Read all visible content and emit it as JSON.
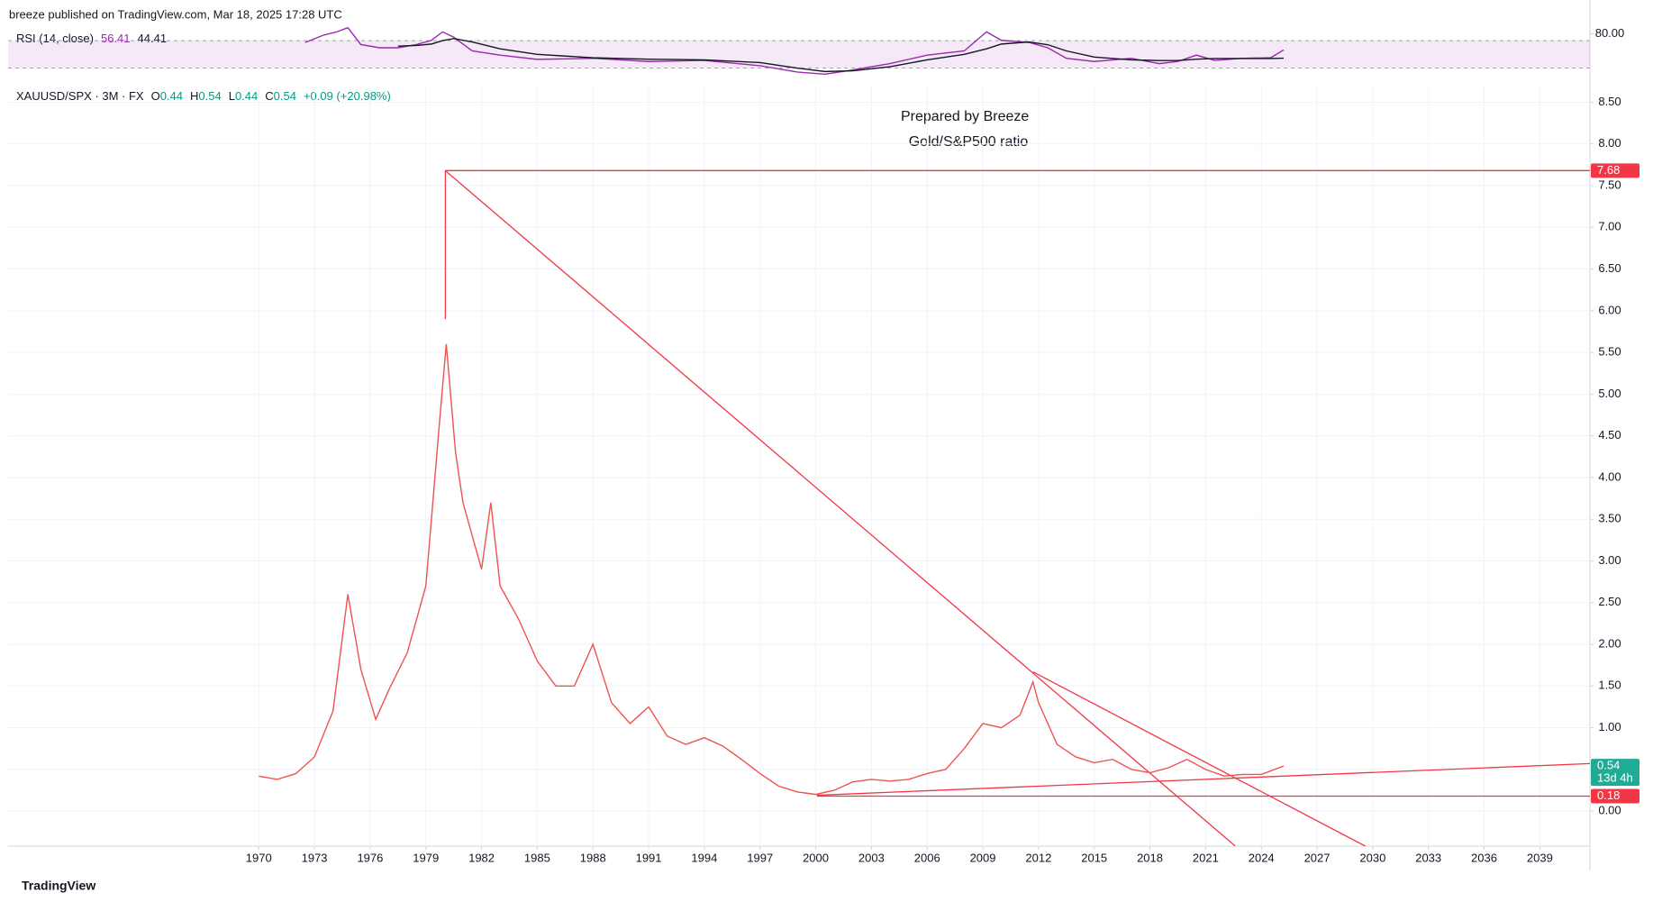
{
  "header": "breeze published on TradingView.com, Mar 18, 2025 17:28 UTC",
  "footer": "TradingView",
  "chart_data": [
    {
      "type": "line",
      "title": "RSI (14, close)",
      "legend_values": [
        56.41,
        44.41
      ],
      "x": [
        1972.5,
        1973.5,
        1974.2,
        1974.8,
        1975.5,
        1976.5,
        1977.5,
        1978.5,
        1979.3,
        1979.9,
        1980.5,
        1981.5,
        1983,
        1985,
        1988,
        1991,
        1994,
        1997,
        1999,
        2000.5,
        2002,
        2004,
        2006,
        2008,
        2009.2,
        2010,
        2011.5,
        2012.5,
        2013.5,
        2015,
        2017,
        2018.5,
        2019.5,
        2020.5,
        2021.5,
        2023,
        2024.5,
        2025.2
      ],
      "series": [
        {
          "color": "#9c27b0",
          "values": [
            67.3,
            78.1,
            82.7,
            88.8,
            64.2,
            59.6,
            59.6,
            64.2,
            70.4,
            82.7,
            75,
            55,
            48.9,
            42.7,
            44.2,
            39.6,
            41.2,
            33.5,
            24.2,
            21.2,
            27.3,
            36.5,
            48.9,
            55,
            82.7,
            70.4,
            67.3,
            59.6,
            44.2,
            39.6,
            44.2,
            36.5,
            39.6,
            48.9,
            41.2,
            44.2,
            45,
            56.41
          ]
        },
        {
          "color": "#131722",
          "values": [
            null,
            null,
            null,
            null,
            null,
            null,
            62,
            63,
            65,
            70,
            73,
            68,
            58,
            50,
            45,
            43,
            42,
            38,
            30,
            25,
            26,
            32,
            42,
            50,
            58,
            65,
            68,
            64,
            55,
            46,
            42,
            41,
            41,
            43,
            44,
            44,
            44,
            44.41
          ]
        }
      ],
      "xlim": [
        1956.5,
        2041.7
      ],
      "ylim": [
        15,
        95
      ],
      "yticks": [
        {
          "value": 80,
          "label": "80.00"
        }
      ],
      "band": [
        30,
        70
      ],
      "band_color": "#9c27b0"
    },
    {
      "type": "line",
      "symbol": "XAUUSD/SPX · 3M · FX",
      "ohlc_labels": [
        "O",
        "H",
        "L",
        "C"
      ],
      "ohlc": [
        0.44,
        0.54,
        0.44,
        0.54
      ],
      "change": "+0.09 (+20.98%)",
      "annotations": [
        "Prepared by Breeze",
        "Gold/S&P500 ratio"
      ],
      "x": [
        1970,
        1971,
        1972,
        1973,
        1974,
        1974.8,
        1975.5,
        1976.3,
        1977,
        1978,
        1979,
        1979.75,
        1980.1,
        1980.6,
        1981,
        1982,
        1982.5,
        1983,
        1984,
        1985,
        1986,
        1987,
        1988,
        1989,
        1990,
        1991,
        1992,
        1993,
        1994,
        1995,
        1996,
        1997,
        1998,
        1999,
        2000,
        2001,
        2002,
        2003,
        2004,
        2005,
        2006,
        2007,
        2008,
        2009,
        2010,
        2011,
        2011.7,
        2012,
        2013,
        2014,
        2015,
        2016,
        2017,
        2018,
        2019,
        2020,
        2021,
        2022,
        2023,
        2024,
        2025.2
      ],
      "series": [
        {
          "color": "#ef5350",
          "values": [
            0.42,
            0.38,
            0.45,
            0.65,
            1.2,
            2.6,
            1.7,
            1.1,
            1.45,
            1.9,
            2.7,
            4.7,
            5.6,
            4.3,
            3.7,
            2.9,
            3.7,
            2.7,
            2.3,
            1.8,
            1.5,
            1.5,
            2.0,
            1.3,
            1.05,
            1.25,
            0.9,
            0.8,
            0.88,
            0.78,
            0.62,
            0.45,
            0.3,
            0.23,
            0.2,
            0.25,
            0.35,
            0.38,
            0.36,
            0.38,
            0.45,
            0.5,
            0.75,
            1.05,
            1.0,
            1.15,
            1.55,
            1.3,
            0.8,
            0.65,
            0.58,
            0.62,
            0.5,
            0.46,
            0.52,
            0.62,
            0.5,
            0.42,
            0.44,
            0.44,
            0.54
          ]
        }
      ],
      "xlim": [
        1956.5,
        2041.7
      ],
      "ylim": [
        -0.42,
        8.71
      ],
      "xticks": [
        1970,
        1973,
        1976,
        1979,
        1982,
        1985,
        1988,
        1991,
        1994,
        1997,
        2000,
        2003,
        2006,
        2009,
        2012,
        2015,
        2018,
        2021,
        2024,
        2027,
        2030,
        2033,
        2036,
        2039
      ],
      "yticks": [
        {
          "value": 0,
          "label": "0.00"
        },
        {
          "value": 0.5,
          "label": "0.50"
        },
        {
          "value": 1,
          "label": "1.00"
        },
        {
          "value": 1.5,
          "label": "1.50"
        },
        {
          "value": 2,
          "label": "2.00"
        },
        {
          "value": 2.5,
          "label": "2.50"
        },
        {
          "value": 3,
          "label": "3.00"
        },
        {
          "value": 3.5,
          "label": "3.50"
        },
        {
          "value": 4,
          "label": "4.00"
        },
        {
          "value": 4.5,
          "label": "4.50"
        },
        {
          "value": 5,
          "label": "5.00"
        },
        {
          "value": 5.5,
          "label": "5.50"
        },
        {
          "value": 6,
          "label": "6.00"
        },
        {
          "value": 6.5,
          "label": "6.50"
        },
        {
          "value": 7,
          "label": "7.00"
        },
        {
          "value": 7.5,
          "label": "7.50"
        },
        {
          "value": 8,
          "label": "8.00"
        },
        {
          "value": 8.5,
          "label": "8.50"
        }
      ],
      "grid": true,
      "trendline_color": "#f23645",
      "trendlines": [
        {
          "x": [
            1980.05,
            2041.7
          ],
          "y": [
            7.68,
            7.68
          ]
        },
        {
          "x": [
            1980.05,
            1980.05
          ],
          "y": [
            7.68,
            5.9
          ]
        },
        {
          "x": [
            1980.05,
            2022.6
          ],
          "y": [
            7.68,
            -0.42
          ]
        },
        {
          "x": [
            2011.7,
            2029.6
          ],
          "y": [
            1.67,
            -0.42
          ]
        },
        {
          "x": [
            2000.06,
            2041.7
          ],
          "y": [
            0.19,
            0.57
          ]
        },
        {
          "x": [
            2000.06,
            2041.7
          ],
          "y": [
            0.18,
            0.18
          ]
        }
      ],
      "price_labels": [
        {
          "value": 7.68,
          "color": "#f23645"
        },
        {
          "value": 0.18,
          "color": "#f23645"
        },
        {
          "value": 0.54,
          "color": "#22ab94",
          "sublabel": "13d 4h"
        }
      ]
    }
  ]
}
